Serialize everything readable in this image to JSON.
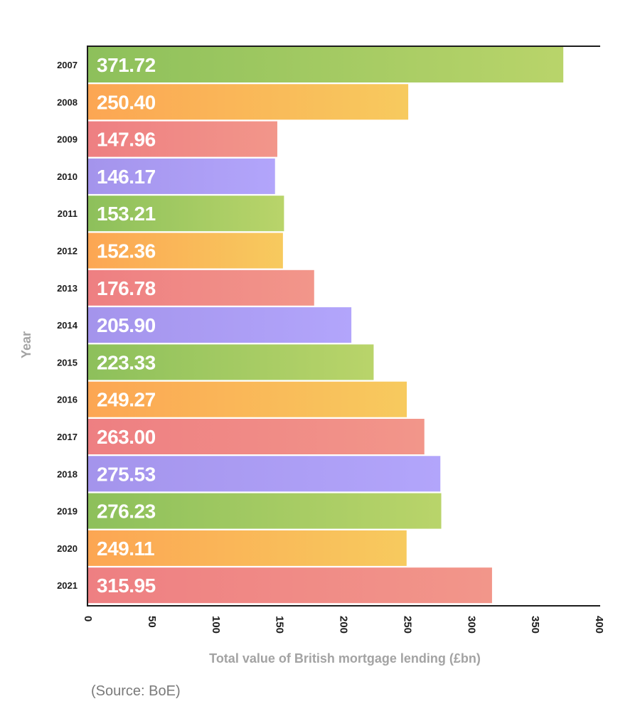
{
  "chart_data": {
    "type": "bar",
    "orientation": "horizontal",
    "categories": [
      "2007",
      "2008",
      "2009",
      "2010",
      "2011",
      "2012",
      "2013",
      "2014",
      "2015",
      "2016",
      "2017",
      "2018",
      "2019",
      "2020",
      "2021"
    ],
    "values": [
      371.72,
      250.4,
      147.96,
      146.17,
      153.21,
      152.36,
      176.78,
      205.9,
      223.33,
      249.27,
      263.0,
      275.53,
      276.23,
      249.11,
      315.95
    ],
    "value_labels": [
      "371.72",
      "250.40",
      "147.96",
      "146.17",
      "153.21",
      "152.36",
      "176.78",
      "205.90",
      "223.33",
      "249.27",
      "263.00",
      "275.53",
      "276.23",
      "249.11",
      "315.95"
    ],
    "xlabel": "Total value of British mortgage lending (£bn)",
    "ylabel": "Year",
    "xlim": [
      0,
      400
    ],
    "x_ticks": [
      "0",
      "50",
      "100",
      "150",
      "200",
      "250",
      "300",
      "350",
      "400"
    ],
    "grid": false,
    "legend": "none",
    "source_note": "(Source: BoE)",
    "color_cycle": [
      {
        "name": "green",
        "from": "#8dc05b",
        "to": "#b9d46a"
      },
      {
        "name": "orange",
        "from": "#fca653",
        "to": "#f7ca5e"
      },
      {
        "name": "red",
        "from": "#ee7f82",
        "to": "#f2968a"
      },
      {
        "name": "purple",
        "from": "#a494ec",
        "to": "#b2a5fb"
      }
    ]
  }
}
